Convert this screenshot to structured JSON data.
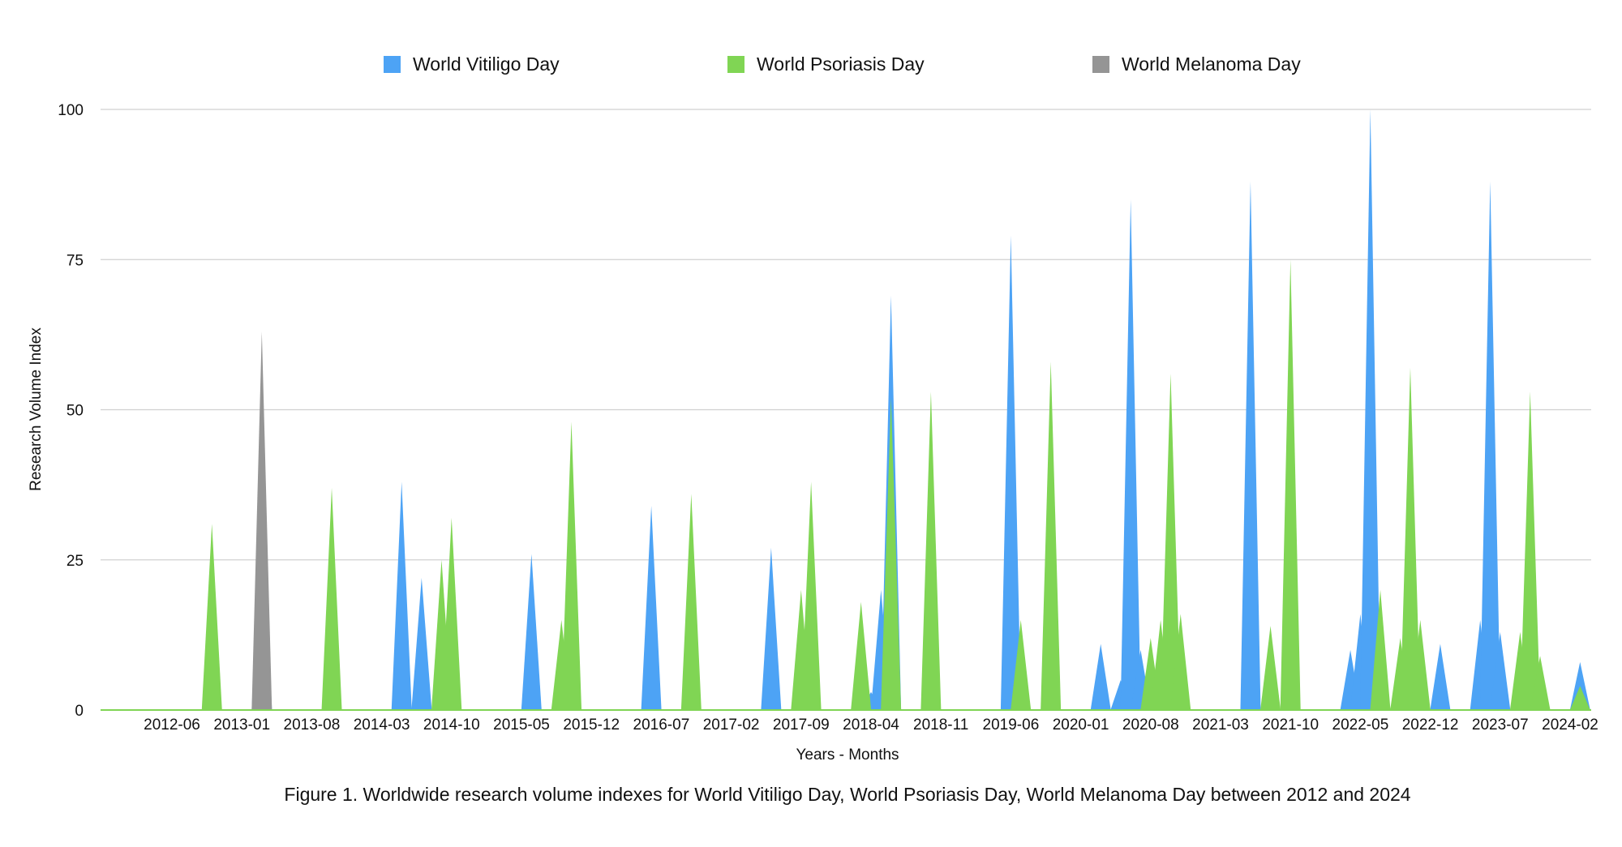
{
  "chart_data": {
    "type": "area",
    "xlabel": "Years - Months",
    "ylabel": "Research Volume Index",
    "caption": "Figure 1. Worldwide research volume indexes for World Vitiligo Day, World Psoriasis Day, World Melanoma Day between 2012 and 2024",
    "ylim": [
      0,
      100
    ],
    "yticks": [
      "0",
      "25",
      "50",
      "75",
      "100"
    ],
    "x_range": [
      "2012-01",
      "2024-03"
    ],
    "xticks": [
      "2012-06",
      "2013-01",
      "2013-08",
      "2014-03",
      "2014-10",
      "2015-05",
      "2015-12",
      "2016-07",
      "2017-02",
      "2017-09",
      "2018-04",
      "2018-11",
      "2019-06",
      "2020-01",
      "2020-08",
      "2021-03",
      "2021-10",
      "2022-05",
      "2022-12",
      "2023-07",
      "2024-02"
    ],
    "grid": "horizontal",
    "legend_position": "top",
    "series": [
      {
        "name": "World Vitiligo Day",
        "color": "#4da3f5",
        "points": [
          {
            "x": "2013-03",
            "y": 35
          },
          {
            "x": "2014-05",
            "y": 38
          },
          {
            "x": "2014-07",
            "y": 22
          },
          {
            "x": "2015-06",
            "y": 26
          },
          {
            "x": "2016-06",
            "y": 34
          },
          {
            "x": "2017-06",
            "y": 27
          },
          {
            "x": "2018-04",
            "y": 3
          },
          {
            "x": "2018-05",
            "y": 20
          },
          {
            "x": "2018-06",
            "y": 69
          },
          {
            "x": "2019-06",
            "y": 79
          },
          {
            "x": "2020-03",
            "y": 11
          },
          {
            "x": "2020-05",
            "y": 5
          },
          {
            "x": "2020-06",
            "y": 85
          },
          {
            "x": "2020-07",
            "y": 10
          },
          {
            "x": "2021-06",
            "y": 88
          },
          {
            "x": "2022-04",
            "y": 10
          },
          {
            "x": "2022-05",
            "y": 16
          },
          {
            "x": "2022-06",
            "y": 100
          },
          {
            "x": "2022-07",
            "y": 9
          },
          {
            "x": "2023-01",
            "y": 11
          },
          {
            "x": "2023-05",
            "y": 15
          },
          {
            "x": "2023-06",
            "y": 88
          },
          {
            "x": "2023-07",
            "y": 13
          },
          {
            "x": "2024-03",
            "y": 8
          }
        ]
      },
      {
        "name": "World Psoriasis Day",
        "color": "#80d554",
        "points": [
          {
            "x": "2012-10",
            "y": 31
          },
          {
            "x": "2013-10",
            "y": 37
          },
          {
            "x": "2014-09",
            "y": 25
          },
          {
            "x": "2014-10",
            "y": 32
          },
          {
            "x": "2015-09",
            "y": 15
          },
          {
            "x": "2015-10",
            "y": 48
          },
          {
            "x": "2016-10",
            "y": 36
          },
          {
            "x": "2017-09",
            "y": 20
          },
          {
            "x": "2017-10",
            "y": 38
          },
          {
            "x": "2018-03",
            "y": 18
          },
          {
            "x": "2018-06",
            "y": 52
          },
          {
            "x": "2018-10",
            "y": 53
          },
          {
            "x": "2019-07",
            "y": 15
          },
          {
            "x": "2019-10",
            "y": 58
          },
          {
            "x": "2020-08",
            "y": 12
          },
          {
            "x": "2020-09",
            "y": 15
          },
          {
            "x": "2020-10",
            "y": 56
          },
          {
            "x": "2020-11",
            "y": 16
          },
          {
            "x": "2021-08",
            "y": 14
          },
          {
            "x": "2021-10",
            "y": 75
          },
          {
            "x": "2022-07",
            "y": 20
          },
          {
            "x": "2022-09",
            "y": 12
          },
          {
            "x": "2022-10",
            "y": 57
          },
          {
            "x": "2022-11",
            "y": 15
          },
          {
            "x": "2023-09",
            "y": 13
          },
          {
            "x": "2023-10",
            "y": 53
          },
          {
            "x": "2023-11",
            "y": 9
          },
          {
            "x": "2024-03",
            "y": 4
          }
        ]
      },
      {
        "name": "World Melanoma Day",
        "color": "#959595",
        "points": [
          {
            "x": "2013-03",
            "y": 63
          }
        ]
      }
    ]
  }
}
